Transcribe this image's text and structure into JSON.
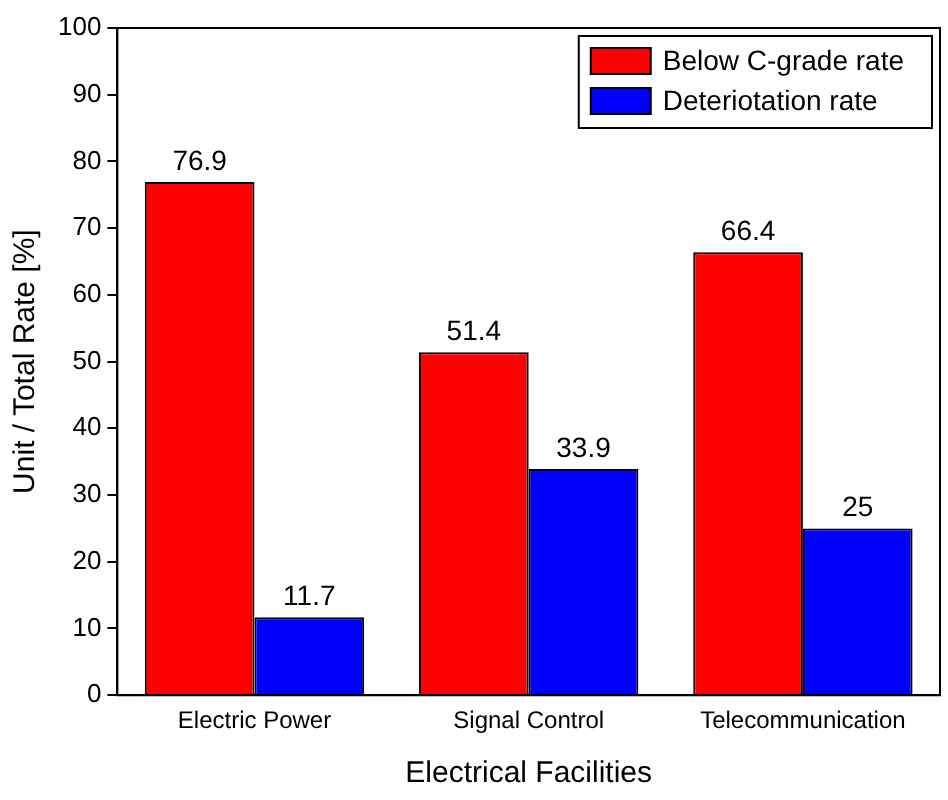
{
  "chart_data": {
    "type": "bar",
    "xlabel": "Electrical Facilities",
    "ylabel": "Unit / Total Rate [%]",
    "categories": [
      "Electric Power",
      "Signal Control",
      "Telecommunication"
    ],
    "series": [
      {
        "name": "Below C-grade rate",
        "color": "#ff0000",
        "values": [
          76.9,
          51.4,
          66.4
        ]
      },
      {
        "name": "Deteriotation rate",
        "color": "#0000ff",
        "values": [
          11.7,
          33.9,
          25
        ]
      }
    ],
    "ylim": [
      0,
      100
    ],
    "yticks": [
      0,
      10,
      20,
      30,
      40,
      50,
      60,
      70,
      80,
      90,
      100
    ],
    "grid": false,
    "legend": "top right",
    "data_labels": true
  }
}
